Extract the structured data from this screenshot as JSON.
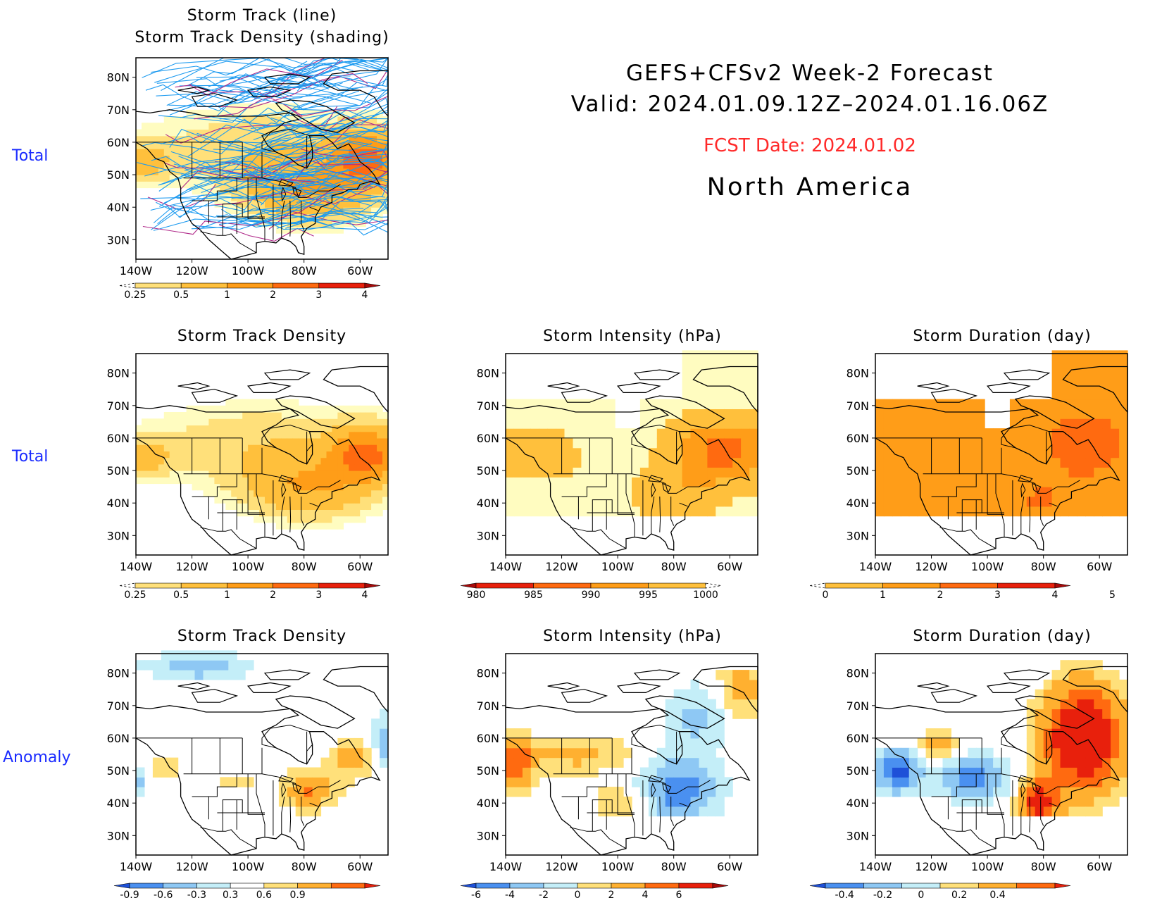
{
  "header": {
    "title_line1": "GEFS+CFSv2 Week-2 Forecast",
    "title_line2": "Valid: 2024.01.09.12Z–2024.01.16.06Z",
    "fcst_date": "FCST Date: 2024.01.02",
    "region": "North America"
  },
  "row_labels": [
    "Total",
    "Total",
    "Anomaly"
  ],
  "panels": [
    {
      "id": "track",
      "title1": "Storm Track (line)",
      "title2": "Storm Track Density (shading)"
    },
    {
      "id": "density_total",
      "title1": "Storm Track Density"
    },
    {
      "id": "intensity_total",
      "title1": "Storm Intensity (hPa)"
    },
    {
      "id": "duration_total",
      "title1": "Storm Duration (day)"
    },
    {
      "id": "density_anom",
      "title1": "Storm Track Density"
    },
    {
      "id": "intensity_anom",
      "title1": "Storm Intensity (hPa)"
    },
    {
      "id": "duration_anom",
      "title1": "Storm Duration (day)"
    }
  ],
  "axes": {
    "lat_ticks": [
      "80N",
      "70N",
      "60N",
      "50N",
      "40N",
      "30N"
    ],
    "lon_ticks": [
      "140W",
      "120W",
      "100W",
      "80W",
      "60W"
    ]
  },
  "colorbars": {
    "density_total": {
      "labels": [
        "0.25",
        "0.5",
        "1",
        "2",
        "3",
        "4"
      ],
      "colors": [
        "#fffcc0",
        "#ffe07a",
        "#ffc03c",
        "#ff9d18",
        "#ff6a10",
        "#e8200c",
        "#a80a0a"
      ]
    },
    "intensity_total": {
      "labels": [
        "980",
        "985",
        "990",
        "995",
        "1000"
      ],
      "colors": [
        "#a80a0a",
        "#e8200c",
        "#ff6a10",
        "#ff9d18",
        "#ffc03c",
        "#fffcc0"
      ]
    },
    "duration_total": {
      "labels": [
        "0",
        "1",
        "2",
        "3",
        "4",
        "5"
      ],
      "colors": [
        "#fffcc0",
        "#ffc03c",
        "#ff9d18",
        "#ff6a10",
        "#e8200c",
        "#a80a0a"
      ]
    },
    "density_anom": {
      "labels": [
        "-0.9",
        "-0.6",
        "-0.3",
        "0.3",
        "0.6",
        "0.9"
      ],
      "colors": [
        "#1e50d8",
        "#4a90f0",
        "#8ec8f4",
        "#c4eef8",
        "#ffffff",
        "#ffe07a",
        "#ffb030",
        "#ff6a10",
        "#e8200c"
      ]
    },
    "intensity_anom": {
      "labels": [
        "-6",
        "-4",
        "-2",
        "0",
        "2",
        "4",
        "6"
      ],
      "colors": [
        "#1e50d8",
        "#4a90f0",
        "#8ec8f4",
        "#c4eef8",
        "#ffe07a",
        "#ffb030",
        "#ff6a10",
        "#e8200c",
        "#a80a0a"
      ]
    },
    "duration_anom": {
      "labels": [
        "-0.4",
        "-0.2",
        "0",
        "0.2",
        "0.4"
      ],
      "colors": [
        "#1e50d8",
        "#4a90f0",
        "#8ec8f4",
        "#c4eef8",
        "#ffe07a",
        "#ffb030",
        "#ff6a10",
        "#e8200c"
      ]
    }
  }
}
